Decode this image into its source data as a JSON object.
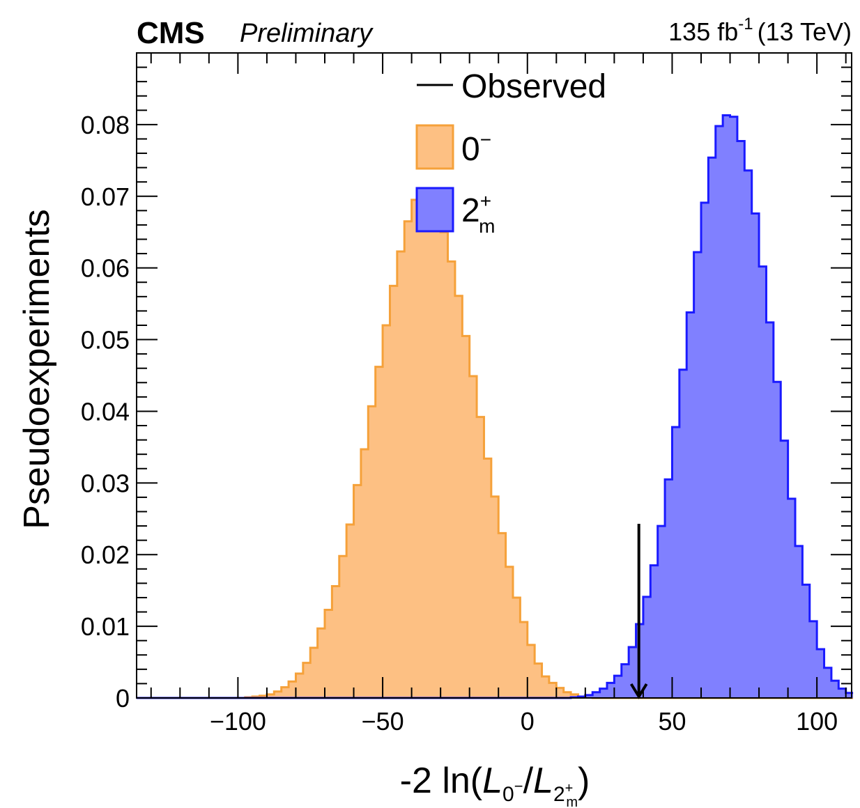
{
  "header": {
    "experiment": "CMS",
    "status": "Preliminary",
    "lumi_value": "135 fb",
    "lumi_exp": "-1",
    "energy": "(13 TeV)"
  },
  "chart_data": {
    "type": "histogram",
    "xlim": [
      -135,
      112
    ],
    "ylim": [
      0,
      0.09
    ],
    "xticks": [
      -100,
      -50,
      0,
      50,
      100
    ],
    "xtick_labels": [
      "−100",
      "−50",
      "0",
      "50",
      "100"
    ],
    "yticks": [
      0,
      0.01,
      0.02,
      0.03,
      0.04,
      0.05,
      0.06,
      0.07,
      0.08
    ],
    "ytick_labels": [
      "0",
      "0.01",
      "0.02",
      "0.03",
      "0.04",
      "0.05",
      "0.06",
      "0.07",
      "0.08"
    ],
    "ylabel": "Pseudoexperiments",
    "xlabel": {
      "prefix": "-2 ln(",
      "num": "L",
      "num_sub": "0",
      "num_sub_sup": "−",
      "slash": "/",
      "den": "L",
      "den_sub": "2",
      "den_sub_sup": "+",
      "den_sub_sub": "m",
      "suffix": ")"
    },
    "legend": {
      "position": "top-center",
      "observed_label": "Observed",
      "h1_main": "0",
      "h1_sup": "−",
      "h2_main": "2",
      "h2_sup": "+",
      "h2_sub": "m"
    },
    "series": [
      {
        "key": "0minus",
        "fill": "#fdc083",
        "stroke": "#f5a13a",
        "x_start": -135,
        "bin_width": 2.5,
        "values": [
          0,
          0,
          0,
          0,
          0,
          0,
          0,
          0,
          0,
          0,
          0,
          0,
          0,
          0,
          0,
          0.0001,
          0.0002,
          0.0003,
          0.0005,
          0.0009,
          0.0015,
          0.0023,
          0.0034,
          0.0049,
          0.007,
          0.0097,
          0.0123,
          0.0156,
          0.0198,
          0.0242,
          0.0297,
          0.0347,
          0.0407,
          0.0462,
          0.052,
          0.0575,
          0.0623,
          0.0665,
          0.0695,
          0.0703,
          0.07,
          0.0683,
          0.065,
          0.0609,
          0.0561,
          0.0505,
          0.0449,
          0.0392,
          0.0334,
          0.0281,
          0.023,
          0.0183,
          0.014,
          0.0106,
          0.0074,
          0.0048,
          0.003,
          0.0021,
          0.0014,
          0.0008,
          0.0005,
          0.0002,
          0.0001,
          0,
          0,
          0,
          0,
          0,
          0,
          0,
          0,
          0,
          0,
          0,
          0,
          0,
          0,
          0,
          0,
          0,
          0,
          0,
          0,
          0,
          0,
          0,
          0,
          0,
          0,
          0,
          0,
          0,
          0,
          0,
          0,
          0,
          0,
          0,
          0
        ]
      },
      {
        "key": "2plus_m",
        "fill": "#8080ff",
        "stroke": "#1a1aff",
        "x_start": -135,
        "bin_width": 2.5,
        "values": [
          0,
          0,
          0,
          0,
          0,
          0,
          0,
          0,
          0,
          0,
          0,
          0,
          0,
          0,
          0,
          0,
          0,
          0,
          0,
          0,
          0,
          0,
          0,
          0,
          0,
          0,
          0,
          0,
          0,
          0,
          0,
          0,
          0,
          0,
          0,
          0,
          0,
          0,
          0,
          0,
          0,
          0,
          0,
          0,
          0,
          0,
          0,
          0,
          0,
          0,
          0,
          0,
          0,
          0,
          0,
          0,
          0,
          0,
          0,
          0,
          0.0001,
          0.0002,
          0.0004,
          0.0008,
          0.0013,
          0.0021,
          0.0031,
          0.0047,
          0.0071,
          0.0103,
          0.0141,
          0.0185,
          0.024,
          0.0305,
          0.0378,
          0.0458,
          0.0538,
          0.0622,
          0.0691,
          0.0754,
          0.0798,
          0.0813,
          0.0811,
          0.0777,
          0.0736,
          0.0676,
          0.0602,
          0.0524,
          0.0441,
          0.0359,
          0.0278,
          0.0212,
          0.0158,
          0.0107,
          0.0068,
          0.0042,
          0.0024,
          0.0013,
          0.0007
        ]
      }
    ],
    "observed": {
      "x": 38.5,
      "y_top": 0.0243
    }
  }
}
